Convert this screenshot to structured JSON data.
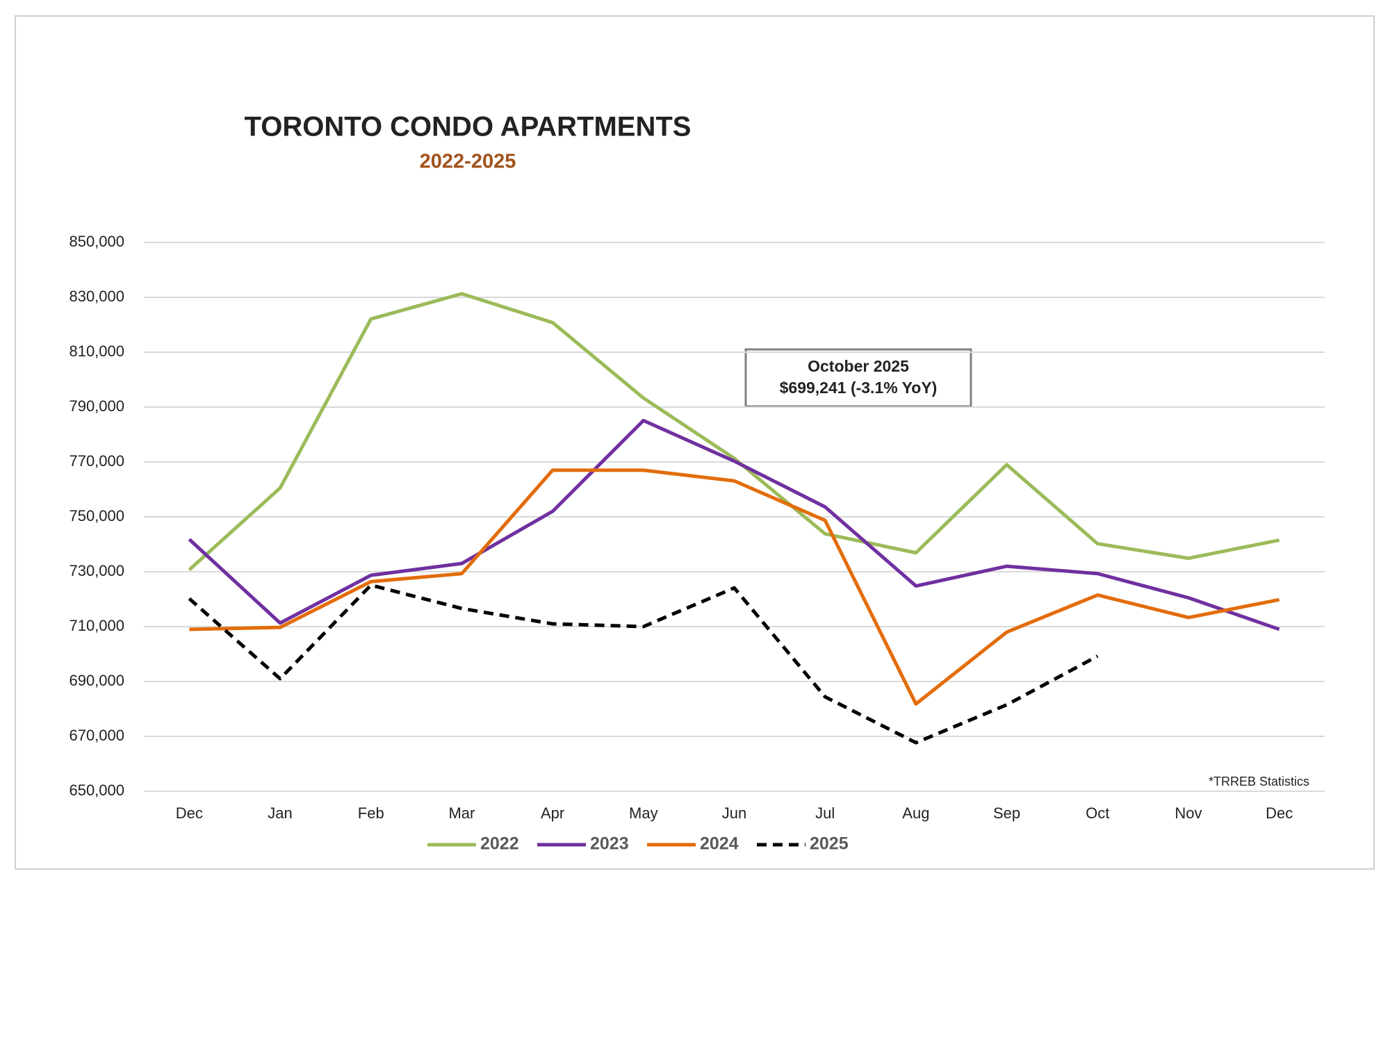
{
  "chart_data": {
    "type": "line",
    "title": "TORONTO CONDO APARTMENTS",
    "subtitle": "2022-2025",
    "annotation": [
      "October 2025",
      "$699,241 (-3.1% YoY)"
    ],
    "source": "*TRREB Statistics",
    "categories": [
      "Dec",
      "Jan",
      "Feb",
      "Mar",
      "Apr",
      "May",
      "Jun",
      "Jul",
      "Aug",
      "Sep",
      "Oct",
      "Nov",
      "Dec"
    ],
    "series": [
      {
        "name": "2022",
        "color": "#9bbb59",
        "dashed": false,
        "values": [
          730700,
          760500,
          822100,
          831300,
          820800,
          793300,
          771300,
          743800,
          736900,
          769000,
          740200,
          734900,
          741500
        ]
      },
      {
        "name": "2023",
        "color": "#7030a0",
        "dashed": false,
        "values": [
          741800,
          711300,
          728700,
          733000,
          752000,
          785100,
          770300,
          753600,
          724800,
          732000,
          729300,
          720500,
          709000
        ]
      },
      {
        "name": "2024",
        "color": "#e36c0a",
        "dashed": false,
        "values": [
          709000,
          709700,
          726400,
          729300,
          767000,
          767000,
          763100,
          748700,
          681800,
          708000,
          721500,
          713300,
          719800
        ]
      },
      {
        "name": "2025",
        "color": "#000000",
        "dashed": true,
        "values": [
          720200,
          691000,
          725100,
          716600,
          711000,
          710000,
          724100,
          684400,
          667700,
          681500,
          699241,
          null,
          null
        ]
      }
    ],
    "ylim": [
      650000,
      850000
    ],
    "yticks": [
      {
        "value": 650000,
        "label": "650,000"
      },
      {
        "value": 670000,
        "label": "670,000"
      },
      {
        "value": 690000,
        "label": "690,000"
      },
      {
        "value": 710000,
        "label": "710,000"
      },
      {
        "value": 730000,
        "label": "730,000"
      },
      {
        "value": 750000,
        "label": "750,000"
      },
      {
        "value": 770000,
        "label": "770,000"
      },
      {
        "value": 790000,
        "label": "790,000"
      },
      {
        "value": 810000,
        "label": "810,000"
      },
      {
        "value": 830000,
        "label": "830,000"
      },
      {
        "value": 850000,
        "label": "850,000"
      }
    ],
    "grid": true,
    "legend": "bottom"
  }
}
